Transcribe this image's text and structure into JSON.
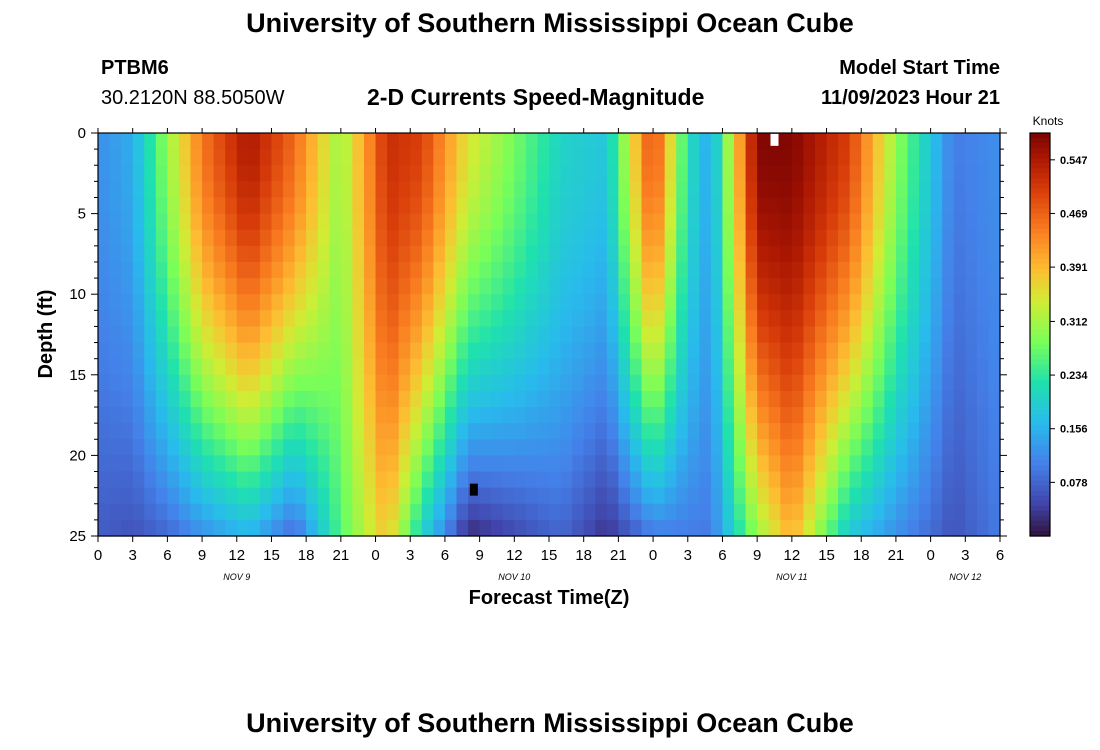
{
  "header": {
    "title": "University of Southern Mississippi Ocean Cube",
    "station_id": "PTBM6",
    "station_coords": "30.2120N  88.5050W",
    "chart_subtitle": "2-D Currents Speed-Magnitude",
    "model_start_label": "Model Start Time",
    "model_start_value": "11/09/2023 Hour 21"
  },
  "footer": {
    "title": "University of Southern Mississippi Ocean Cube"
  },
  "chart_data": {
    "type": "heatmap",
    "title": "2-D Currents Speed-Magnitude",
    "xlabel": "Forecast Time(Z)",
    "ylabel": "Depth (ft)",
    "x_range_hours": [
      0,
      78
    ],
    "x_tick_hours": [
      0,
      3,
      6,
      9,
      12,
      15,
      18,
      21,
      24,
      27,
      30,
      33,
      36,
      39,
      42,
      45,
      48,
      51,
      54,
      57,
      60,
      63,
      66,
      69,
      72,
      75,
      78
    ],
    "x_tick_labels": [
      "0",
      "3",
      "6",
      "9",
      "12",
      "15",
      "18",
      "21",
      "0",
      "3",
      "6",
      "9",
      "12",
      "15",
      "18",
      "21",
      "0",
      "3",
      "6",
      "9",
      "12",
      "15",
      "18",
      "21",
      "0",
      "3",
      "6"
    ],
    "day_labels": [
      {
        "hour": 12,
        "text": "NOV 9"
      },
      {
        "hour": 36,
        "text": "NOV 10"
      },
      {
        "hour": 60,
        "text": "NOV 11"
      },
      {
        "hour": 75,
        "text": "NOV 12"
      }
    ],
    "y_range_ft": [
      0,
      25
    ],
    "y_ticks": [
      0,
      5,
      10,
      15,
      20,
      25
    ],
    "y_tick_labels": [
      "0",
      "5",
      "10",
      "15",
      "20",
      "25"
    ],
    "y_inverted": true,
    "colorbar": {
      "unit": "Knots",
      "min": 0.0,
      "max": 0.586,
      "ticks": [
        0.078,
        0.156,
        0.234,
        0.312,
        0.391,
        0.469,
        0.547
      ],
      "tick_labels": [
        "0.078",
        "0.156",
        "0.234",
        "0.312",
        "0.391",
        "0.469",
        "0.547"
      ]
    },
    "approx_speed_knots_by_time": [
      {
        "hour": 0,
        "top": 0.12,
        "bottom": 0.07
      },
      {
        "hour": 3,
        "top": 0.15,
        "bottom": 0.06
      },
      {
        "hour": 6,
        "top": 0.3,
        "bottom": 0.08
      },
      {
        "hour": 9,
        "top": 0.45,
        "bottom": 0.12
      },
      {
        "hour": 13,
        "top": 0.55,
        "bottom": 0.16
      },
      {
        "hour": 17,
        "top": 0.46,
        "bottom": 0.08
      },
      {
        "hour": 21,
        "top": 0.3,
        "bottom": 0.26
      },
      {
        "hour": 25,
        "top": 0.52,
        "bottom": 0.38
      },
      {
        "hour": 28,
        "top": 0.5,
        "bottom": 0.2
      },
      {
        "hour": 32,
        "top": 0.35,
        "bottom": 0.02
      },
      {
        "hour": 36,
        "top": 0.28,
        "bottom": 0.05
      },
      {
        "hour": 40,
        "top": 0.2,
        "bottom": 0.08
      },
      {
        "hour": 44,
        "top": 0.18,
        "bottom": 0.03
      },
      {
        "hour": 48,
        "top": 0.5,
        "bottom": 0.1
      },
      {
        "hour": 51,
        "top": 0.22,
        "bottom": 0.1
      },
      {
        "hour": 53,
        "top": 0.14,
        "bottom": 0.1
      },
      {
        "hour": 57,
        "top": 0.58,
        "bottom": 0.3
      },
      {
        "hour": 60,
        "top": 0.58,
        "bottom": 0.4
      },
      {
        "hour": 65,
        "top": 0.5,
        "bottom": 0.18
      },
      {
        "hour": 69,
        "top": 0.3,
        "bottom": 0.12
      },
      {
        "hour": 74,
        "top": 0.1,
        "bottom": 0.06
      },
      {
        "hour": 78,
        "top": 0.12,
        "bottom": 0.1
      }
    ],
    "markers": [
      {
        "hour": 58.5,
        "depth_ft": 0.3,
        "color": "#ffffff"
      },
      {
        "hour": 32.5,
        "depth_ft": 22.0,
        "color": "#000000"
      }
    ]
  }
}
